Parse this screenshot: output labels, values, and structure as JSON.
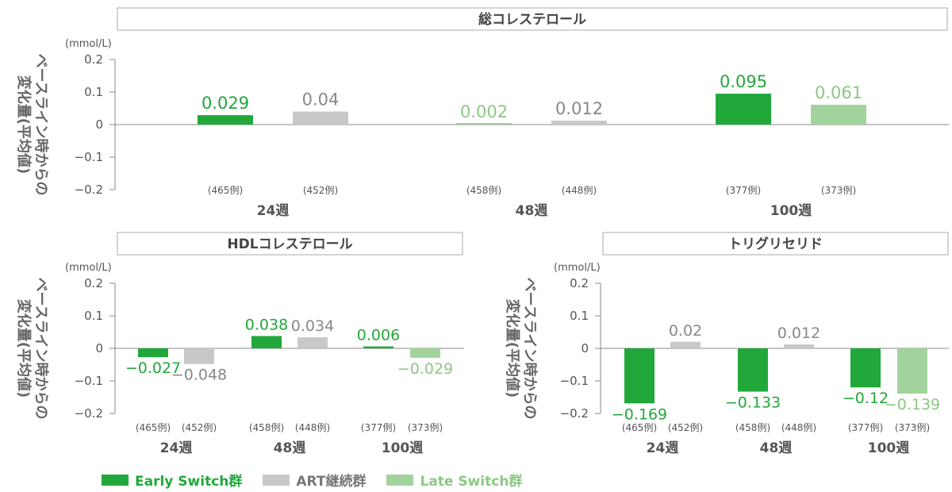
{
  "y_axis_label_line1": "ベースライン時からの",
  "y_axis_label_line2": "変化量(平均値)",
  "colors": {
    "early": "#22a83a",
    "art": "#c8c8c8",
    "late": "#a3d39c",
    "grid": "#888888",
    "frame": "#aaaaaa"
  },
  "legend": [
    {
      "key": "early",
      "label": "Early Switch群",
      "text_color": "#22a83a"
    },
    {
      "key": "art",
      "label": "ART継続群",
      "text_color": "#777777"
    },
    {
      "key": "late",
      "label": "Late Switch群",
      "text_color": "#8cc884"
    }
  ],
  "chart_data": [
    {
      "type": "bar",
      "title": "総コレステロール",
      "unit": "(mmol/L)",
      "ylim": [
        -0.2,
        0.2
      ],
      "yticks": [
        0.2,
        0.1,
        0,
        -0.1,
        -0.2
      ],
      "ytick_labels": [
        "0.2",
        "0.1",
        "0",
        "−0.1",
        "−0.2"
      ],
      "categories": [
        "24週",
        "48週",
        "100週"
      ],
      "bars": [
        {
          "category": "24週",
          "group": "early",
          "value": 0.029,
          "label": "0.029",
          "n": "(465例)"
        },
        {
          "category": "24週",
          "group": "art",
          "value": 0.04,
          "label": "0.04",
          "n": "(452例)"
        },
        {
          "category": "48週",
          "group": "late",
          "value": 0.002,
          "label": "0.002",
          "n": "(458例)"
        },
        {
          "category": "48週",
          "group": "art",
          "value": 0.012,
          "label": "0.012",
          "n": "(448例)"
        },
        {
          "category": "100週",
          "group": "early",
          "value": 0.095,
          "label": "0.095",
          "n": "(377例)"
        },
        {
          "category": "100週",
          "group": "late",
          "value": 0.061,
          "label": "0.061",
          "n": "(373例)"
        }
      ]
    },
    {
      "type": "bar",
      "title": "HDLコレステロール",
      "unit": "(mmol/L)",
      "ylim": [
        -0.2,
        0.2
      ],
      "yticks": [
        0.2,
        0.1,
        0,
        -0.1,
        -0.2
      ],
      "ytick_labels": [
        "0.2",
        "0.1",
        "0",
        "−0.1",
        "−0.2"
      ],
      "categories": [
        "24週",
        "48週",
        "100週"
      ],
      "bars": [
        {
          "category": "24週",
          "group": "early",
          "value": -0.027,
          "label": "−0.027",
          "n": "(465例)"
        },
        {
          "category": "24週",
          "group": "art",
          "value": -0.048,
          "label": "−0.048",
          "n": "(452例)"
        },
        {
          "category": "48週",
          "group": "early",
          "value": 0.038,
          "label": "0.038",
          "n": "(458例)"
        },
        {
          "category": "48週",
          "group": "art",
          "value": 0.034,
          "label": "0.034",
          "n": "(448例)"
        },
        {
          "category": "100週",
          "group": "early",
          "value": 0.006,
          "label": "0.006",
          "n": "(377例)"
        },
        {
          "category": "100週",
          "group": "late",
          "value": -0.029,
          "label": "−0.029",
          "n": "(373例)"
        }
      ]
    },
    {
      "type": "bar",
      "title": "トリグリセリド",
      "unit": "(mmol/L)",
      "ylim": [
        -0.2,
        0.2
      ],
      "yticks": [
        0.2,
        0.1,
        0,
        -0.1,
        -0.2
      ],
      "ytick_labels": [
        "0.2",
        "0.1",
        "0",
        "−0.1",
        "−0.2"
      ],
      "categories": [
        "24週",
        "48週",
        "100週"
      ],
      "bars": [
        {
          "category": "24週",
          "group": "early",
          "value": -0.169,
          "label": "−0.169",
          "n": "(465例)"
        },
        {
          "category": "24週",
          "group": "art",
          "value": 0.02,
          "label": "0.02",
          "n": "(452例)"
        },
        {
          "category": "48週",
          "group": "early",
          "value": -0.133,
          "label": "−0.133",
          "n": "(458例)"
        },
        {
          "category": "48週",
          "group": "art",
          "value": 0.012,
          "label": "0.012",
          "n": "(448例)"
        },
        {
          "category": "100週",
          "group": "early",
          "value": -0.12,
          "label": "−0.12",
          "n": "(377例)"
        },
        {
          "category": "100週",
          "group": "late",
          "value": -0.139,
          "label": "−0.139",
          "n": "(373例)"
        }
      ]
    }
  ]
}
